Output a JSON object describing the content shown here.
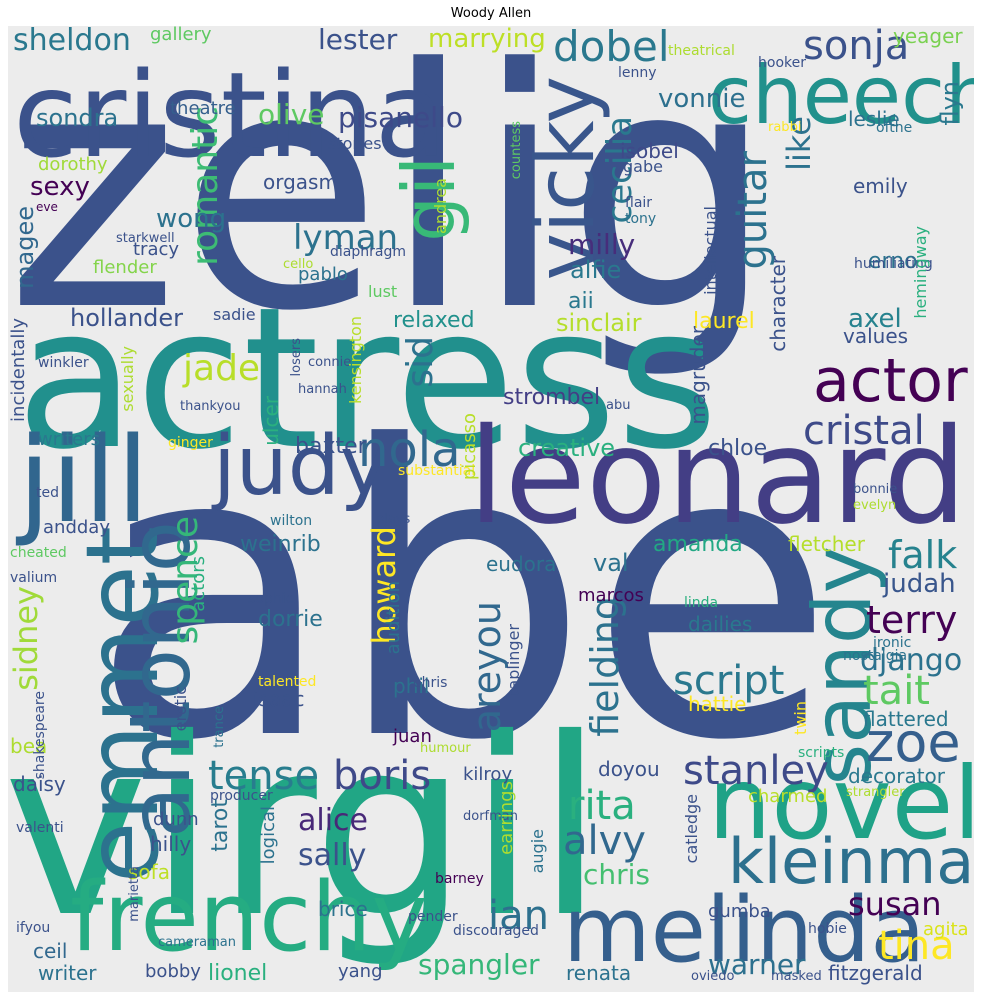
{
  "title": "Woody Allen",
  "words": [
    {
      "id": "zelig",
      "text": "zelig",
      "color": "#3b528b"
    },
    {
      "id": "abe",
      "text": "abe",
      "color": "#3b528b"
    },
    {
      "id": "virgil",
      "text": "virgil",
      "color": "#21a685"
    },
    {
      "id": "actress",
      "text": "actress",
      "color": "#21908d"
    },
    {
      "id": "leonard",
      "text": "leonard",
      "color": "#433e85"
    },
    {
      "id": "cristina",
      "text": "cristina",
      "color": "#3b528b"
    },
    {
      "id": "jill",
      "text": "jill",
      "color": "#31668e"
    },
    {
      "id": "frenchy",
      "text": "frenchy",
      "color": "#25ac82"
    },
    {
      "id": "melinda",
      "text": "melinda",
      "color": "#355f8d"
    },
    {
      "id": "novel",
      "text": "novel",
      "color": "#1fa287"
    },
    {
      "id": "emmet",
      "text": "emmet",
      "color": "#2c728e"
    },
    {
      "id": "cheech",
      "text": "cheech",
      "color": "#21918c"
    },
    {
      "id": "judy",
      "text": "judy",
      "color": "#3b528b"
    },
    {
      "id": "antonio",
      "text": "antonio",
      "color": "#31688e"
    },
    {
      "id": "vicky",
      "text": "vicky",
      "color": "#39568c"
    },
    {
      "id": "sandy",
      "text": "sandy",
      "color": "#25858e"
    },
    {
      "id": "kleinman",
      "text": "kleinman",
      "color": "#2d708e"
    },
    {
      "id": "gil",
      "text": "gil",
      "color": "#38b977"
    },
    {
      "id": "actor",
      "text": "actor",
      "color": "#440154"
    },
    {
      "id": "zoe",
      "text": "zoe",
      "color": "#355f8d"
    },
    {
      "id": "nola",
      "text": "nola",
      "color": "#31688e"
    },
    {
      "id": "cristal",
      "text": "cristal",
      "color": "#3e4a89"
    },
    {
      "id": "dobel",
      "text": "dobel",
      "color": "#2a788e"
    },
    {
      "id": "sonja",
      "text": "sonja",
      "color": "#3b528b"
    },
    {
      "id": "tense",
      "text": "tense",
      "color": "#287d8e"
    },
    {
      "id": "boris",
      "text": "boris",
      "color": "#3e4989"
    },
    {
      "id": "stanley",
      "text": "stanley",
      "color": "#3e4a89"
    },
    {
      "id": "script",
      "text": "script",
      "color": "#2a788e"
    },
    {
      "id": "tait",
      "text": "tait",
      "color": "#5ec962"
    },
    {
      "id": "tina",
      "text": "tina",
      "color": "#fde725"
    },
    {
      "id": "rita",
      "text": "rita",
      "color": "#2ab07f"
    },
    {
      "id": "alvy",
      "text": "alvy",
      "color": "#31688e"
    },
    {
      "id": "ian",
      "text": "ian",
      "color": "#2d708e"
    },
    {
      "id": "susan",
      "text": "susan",
      "color": "#440154"
    },
    {
      "id": "terry",
      "text": "terry",
      "color": "#440154"
    },
    {
      "id": "falk",
      "text": "falk",
      "color": "#26828e"
    },
    {
      "id": "spangler",
      "text": "spangler",
      "color": "#35b779"
    },
    {
      "id": "warner",
      "text": "warner",
      "color": "#2d708e"
    },
    {
      "id": "sally",
      "text": "sally",
      "color": "#3b528b"
    },
    {
      "id": "alice",
      "text": "alice",
      "color": "#482878"
    },
    {
      "id": "chris",
      "text": "chris",
      "color": "#44bf70"
    },
    {
      "id": "areyou",
      "text": "areyou",
      "color": "#31688e"
    },
    {
      "id": "fielding",
      "text": "fielding",
      "color": "#2c728e"
    },
    {
      "id": "guitar",
      "text": "guitar",
      "color": "#2c728e"
    },
    {
      "id": "cecilia",
      "text": "cecilia",
      "color": "#2a788e"
    },
    {
      "id": "romantic",
      "text": "romantic",
      "color": "#3dbc74"
    },
    {
      "id": "lyman",
      "text": "lyman",
      "color": "#2c728e"
    },
    {
      "id": "jade",
      "text": "jade",
      "color": "#b8de29"
    },
    {
      "id": "spence",
      "text": "spence",
      "color": "#35b779"
    },
    {
      "id": "sid",
      "text": "sid",
      "color": "#2c728e"
    },
    {
      "id": "howard",
      "text": "howard",
      "color": "#fde725"
    },
    {
      "id": "sidney",
      "text": "sidney",
      "color": "#a0da39"
    },
    {
      "id": "django",
      "text": "django",
      "color": "#2c728e"
    },
    {
      "id": "judah",
      "text": "judah",
      "color": "#39568c"
    },
    {
      "id": "like",
      "text": "like",
      "color": "#2c728e"
    },
    {
      "id": "milly",
      "text": "milly",
      "color": "#472d7b"
    },
    {
      "id": "sheldon",
      "text": "sheldon",
      "color": "#2a788e"
    },
    {
      "id": "lester",
      "text": "lester",
      "color": "#3b528b"
    },
    {
      "id": "marrying",
      "text": "marrying",
      "color": "#bddf26"
    },
    {
      "id": "vonnie",
      "text": "vonnie",
      "color": "#2d708e"
    },
    {
      "id": "yeager",
      "text": "yeager",
      "color": "#7ad151"
    },
    {
      "id": "flyn",
      "text": "flyn",
      "color": "#2a788e"
    },
    {
      "id": "pisanello",
      "text": "pisanello",
      "color": "#3e4a89"
    },
    {
      "id": "olive",
      "text": "olive",
      "color": "#5ec962"
    },
    {
      "id": "sondra",
      "text": "sondra",
      "color": "#2c728e"
    },
    {
      "id": "theatre",
      "text": "theatre",
      "color": "#355f8d"
    },
    {
      "id": "leslie",
      "text": "leslie",
      "color": "#2c728e"
    },
    {
      "id": "stories",
      "text": "stories",
      "color": "#3b528b"
    },
    {
      "id": "isobel",
      "text": "isobel",
      "color": "#3e4a89"
    },
    {
      "id": "sexy",
      "text": "sexy",
      "color": "#440154"
    },
    {
      "id": "magee",
      "text": "magee",
      "color": "#31688e"
    },
    {
      "id": "wong",
      "text": "wong",
      "color": "#2c728e"
    },
    {
      "id": "dorothy",
      "text": "dorothy",
      "color": "#a0da39"
    },
    {
      "id": "tracy",
      "text": "tracy",
      "color": "#3b528b"
    },
    {
      "id": "orgasm",
      "text": "orgasm",
      "color": "#3b528b"
    },
    {
      "id": "emily",
      "text": "emily",
      "color": "#3b528b"
    },
    {
      "id": "alfie",
      "text": "alfie",
      "color": "#2a788e"
    },
    {
      "id": "erno",
      "text": "erno",
      "color": "#2c728e"
    },
    {
      "id": "pablo",
      "text": "pablo",
      "color": "#2c728e"
    },
    {
      "id": "flender",
      "text": "flender",
      "color": "#84d44b"
    },
    {
      "id": "aii",
      "text": "aii",
      "color": "#2a788e"
    },
    {
      "id": "hollander",
      "text": "hollander",
      "color": "#3b528b"
    },
    {
      "id": "sinclair",
      "text": "sinclair",
      "color": "#b5de2b"
    },
    {
      "id": "laurel",
      "text": "laurel",
      "color": "#fde725"
    },
    {
      "id": "relaxed",
      "text": "relaxed",
      "color": "#21918c"
    },
    {
      "id": "axel",
      "text": "axel",
      "color": "#26828e"
    },
    {
      "id": "values",
      "text": "values",
      "color": "#3b528b"
    },
    {
      "id": "strombel",
      "text": "strombel",
      "color": "#433e85"
    },
    {
      "id": "creative",
      "text": "creative",
      "color": "#2ab07f"
    },
    {
      "id": "chloe",
      "text": "chloe",
      "color": "#3b528b"
    },
    {
      "id": "baxter",
      "text": "baxter",
      "color": "#3b528b"
    },
    {
      "id": "weinrib",
      "text": "weinrib",
      "color": "#2c728e"
    },
    {
      "id": "amanda",
      "text": "amanda",
      "color": "#22a884"
    },
    {
      "id": "eudora",
      "text": "eudora",
      "color": "#2c728e"
    },
    {
      "id": "val",
      "text": "val",
      "color": "#2c728e"
    },
    {
      "id": "fletcher",
      "text": "fletcher",
      "color": "#b5de2b"
    },
    {
      "id": "marcos",
      "text": "marcos",
      "color": "#440154"
    },
    {
      "id": "dorrie",
      "text": "dorrie",
      "color": "#2c728e"
    },
    {
      "id": "dailies",
      "text": "dailies",
      "color": "#2a788e"
    },
    {
      "id": "isaac",
      "text": "isaac",
      "color": "#3b528b"
    },
    {
      "id": "phil",
      "text": "phil",
      "color": "#2c728e"
    },
    {
      "id": "juan",
      "text": "juan",
      "color": "#440154"
    },
    {
      "id": "kilroy",
      "text": "kilroy",
      "color": "#3b528b"
    },
    {
      "id": "doyou",
      "text": "doyou",
      "color": "#3b528b"
    },
    {
      "id": "decorator",
      "text": "decorator",
      "color": "#2a788e"
    },
    {
      "id": "flattered",
      "text": "flattered",
      "color": "#2a788e"
    },
    {
      "id": "hattie",
      "text": "hattie",
      "color": "#fde725"
    },
    {
      "id": "charmed",
      "text": "charmed",
      "color": "#b8de29"
    },
    {
      "id": "dunn",
      "text": "dunn",
      "color": "#3b528b"
    },
    {
      "id": "hilly",
      "text": "hilly",
      "color": "#3b528b"
    },
    {
      "id": "sofa",
      "text": "sofa",
      "color": "#bddf26"
    },
    {
      "id": "brice",
      "text": "brice",
      "color": "#2c728e"
    },
    {
      "id": "gumba",
      "text": "gumba",
      "color": "#3b528b"
    },
    {
      "id": "agita",
      "text": "agita",
      "color": "#dae319"
    },
    {
      "id": "writer",
      "text": "writer",
      "color": "#2c728e"
    },
    {
      "id": "bobby",
      "text": "bobby",
      "color": "#3b528b"
    },
    {
      "id": "lionel",
      "text": "lionel",
      "color": "#2ab07f"
    },
    {
      "id": "yang",
      "text": "yang",
      "color": "#3b528b"
    },
    {
      "id": "renata",
      "text": "renata",
      "color": "#2c728e"
    },
    {
      "id": "fitzgerald",
      "text": "fitzgerald",
      "color": "#3b528b"
    },
    {
      "id": "ceil",
      "text": "ceil",
      "color": "#31688e"
    },
    {
      "id": "daisy",
      "text": "daisy",
      "color": "#3b528b"
    },
    {
      "id": "bea",
      "text": "bea",
      "color": "#addc30"
    },
    {
      "id": "writers",
      "text": "writers",
      "color": "#2a788e"
    },
    {
      "id": "ginger",
      "text": "ginger",
      "color": "#fde725"
    },
    {
      "id": "substantial",
      "text": "substantial",
      "color": "#fde725"
    },
    {
      "id": "ted",
      "text": "ted",
      "color": "#3b528b"
    },
    {
      "id": "andday",
      "text": "andday",
      "color": "#3b528b"
    },
    {
      "id": "cheated",
      "text": "cheated",
      "color": "#5ec962"
    },
    {
      "id": "valium",
      "text": "valium",
      "color": "#3b528b"
    },
    {
      "id": "wilton",
      "text": "wilton",
      "color": "#2c728e"
    },
    {
      "id": "plays",
      "text": "plays",
      "color": "#3b528b"
    },
    {
      "id": "sophie",
      "text": "sophie",
      "color": "#3b528b"
    },
    {
      "id": "linda",
      "text": "linda",
      "color": "#2ab07f"
    },
    {
      "id": "nostalgia",
      "text": "nostalgia",
      "color": "#2c728e"
    },
    {
      "id": "ironic",
      "text": "ironic",
      "color": "#2c728e"
    },
    {
      "id": "talented",
      "text": "talented",
      "color": "#fde725"
    },
    {
      "id": "ohris",
      "text": "ohris",
      "color": "#3b528b"
    },
    {
      "id": "humour",
      "text": "humour",
      "color": "#addc30"
    },
    {
      "id": "producer",
      "text": "producer",
      "color": "#3b528b"
    },
    {
      "id": "strangler",
      "text": "strangler",
      "color": "#addc30"
    },
    {
      "id": "valenti",
      "text": "valenti",
      "color": "#3b528b"
    },
    {
      "id": "dorfman",
      "text": "dorfman",
      "color": "#3b528b"
    },
    {
      "id": "barney",
      "text": "barney",
      "color": "#440154"
    },
    {
      "id": "ifyou",
      "text": "ifyou",
      "color": "#3b528b"
    },
    {
      "id": "cameraman",
      "text": "cameraman",
      "color": "#2c728e"
    },
    {
      "id": "pender",
      "text": "pender",
      "color": "#3b528b"
    },
    {
      "id": "hobie",
      "text": "hobie",
      "color": "#3b528b"
    },
    {
      "id": "discouraged",
      "text": "discouraged",
      "color": "#3b528b"
    },
    {
      "id": "oviedo",
      "text": "oviedo",
      "color": "#3b528b"
    },
    {
      "id": "masked",
      "text": "masked",
      "color": "#3b528b"
    },
    {
      "id": "scripts",
      "text": "scripts",
      "color": "#2ab07f"
    },
    {
      "id": "bonnie",
      "text": "bonnie",
      "color": "#3b528b"
    },
    {
      "id": "evelyn",
      "text": "evelyn",
      "color": "#addc30"
    },
    {
      "id": "connie",
      "text": "connie",
      "color": "#3b528b"
    },
    {
      "id": "hannah",
      "text": "hannah",
      "color": "#3b528b"
    },
    {
      "id": "thankyou",
      "text": "thankyou",
      "color": "#3b528b"
    },
    {
      "id": "winkler",
      "text": "winkler",
      "color": "#3b528b"
    },
    {
      "id": "abu",
      "text": "abu",
      "color": "#3b528b"
    },
    {
      "id": "sadie",
      "text": "sadie",
      "color": "#3b528b"
    },
    {
      "id": "lust",
      "text": "lust",
      "color": "#5ec962"
    },
    {
      "id": "cello",
      "text": "cello",
      "color": "#addc30"
    },
    {
      "id": "starkwell",
      "text": "starkwell",
      "color": "#3b528b"
    },
    {
      "id": "diaphragm",
      "text": "diaphragm",
      "color": "#3b528b"
    },
    {
      "id": "eve",
      "text": "eve",
      "color": "#440154"
    },
    {
      "id": "gallery",
      "text": "gallery",
      "color": "#5ec962"
    },
    {
      "id": "lenny",
      "text": "lenny",
      "color": "#3b528b"
    },
    {
      "id": "theatrical",
      "text": "theatrical",
      "color": "#addc30"
    },
    {
      "id": "hooker",
      "text": "hooker",
      "color": "#3b528b"
    },
    {
      "id": "rabbi",
      "text": "rabbi",
      "color": "#fde725"
    },
    {
      "id": "ofthe",
      "text": "ofthe",
      "color": "#2c728e"
    },
    {
      "id": "gabe",
      "text": "gabe",
      "color": "#3b528b"
    },
    {
      "id": "flair",
      "text": "flair",
      "color": "#3b528b"
    },
    {
      "id": "tony",
      "text": "tony",
      "color": "#2c728e"
    },
    {
      "id": "humiliating",
      "text": "humiliating",
      "color": "#3b528b"
    },
    {
      "id": "andrea",
      "text": "andrea",
      "color": "#addc30"
    },
    {
      "id": "countess",
      "text": "countess",
      "color": "#5ec962"
    },
    {
      "id": "intellectual",
      "text": "intellectual",
      "color": "#3b528b"
    },
    {
      "id": "hemingway",
      "text": "hemingway",
      "color": "#2ab07f"
    },
    {
      "id": "character",
      "text": "character",
      "color": "#3b528b"
    },
    {
      "id": "magruder",
      "text": "magruder",
      "color": "#3b528b"
    },
    {
      "id": "kensington",
      "text": "kensington",
      "color": "#b8de29"
    },
    {
      "id": "picasso",
      "text": "picasso",
      "color": "#b8de29"
    },
    {
      "id": "ulcer",
      "text": "ulcer",
      "color": "#2ab07f"
    },
    {
      "id": "losers",
      "text": "losers",
      "color": "#3b528b"
    },
    {
      "id": "sexually",
      "text": "sexually",
      "color": "#addc30"
    },
    {
      "id": "incidentally",
      "text": "incidentally",
      "color": "#3b528b"
    },
    {
      "id": "audition",
      "text": "audition",
      "color": "#2c728e"
    },
    {
      "id": "taplinger",
      "text": "taplinger",
      "color": "#3b528b"
    },
    {
      "id": "actors",
      "text": "actors",
      "color": "#2ab07f"
    },
    {
      "id": "erotic",
      "text": "erotic",
      "color": "#3b528b"
    },
    {
      "id": "trance",
      "text": "trance",
      "color": "#2c728e"
    },
    {
      "id": "shakespeare",
      "text": "shakespeare",
      "color": "#3b528b"
    },
    {
      "id": "tarot",
      "text": "tarot",
      "color": "#2c728e"
    },
    {
      "id": "logical",
      "text": "logical",
      "color": "#2c728e"
    },
    {
      "id": "earrings",
      "text": "earrings",
      "color": "#addc30"
    },
    {
      "id": "augie",
      "text": "augie",
      "color": "#2c728e"
    },
    {
      "id": "catledge",
      "text": "catledge",
      "color": "#3b528b"
    },
    {
      "id": "twin",
      "text": "twin",
      "color": "#fde725"
    },
    {
      "id": "marietta",
      "text": "marietta",
      "color": "#3b528b"
    }
  ]
}
